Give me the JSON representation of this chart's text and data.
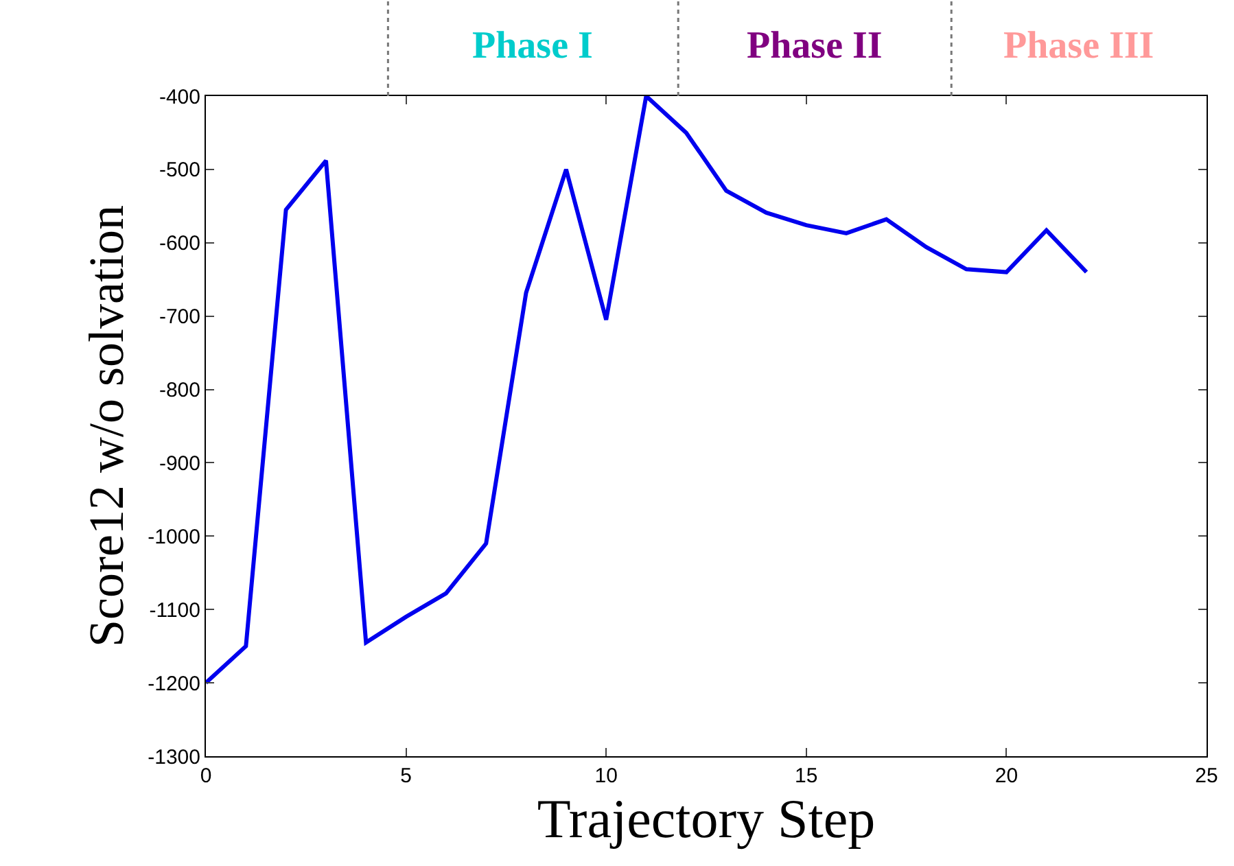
{
  "chart_data": {
    "type": "line",
    "xlabel": "Trajectory Step",
    "ylabel": "Score12 w/o solvation",
    "x": [
      0,
      1,
      2,
      3,
      4,
      5,
      6,
      7,
      8,
      9,
      10,
      11,
      12,
      13,
      14,
      15,
      16,
      17,
      18,
      19,
      20,
      21,
      22
    ],
    "series": [
      {
        "color": "#0000ee",
        "values": [
          -1200,
          -1150,
          -555,
          -488,
          -1145,
          -1110,
          -1078,
          -1010,
          -668,
          -500,
          -705,
          -400,
          -450,
          -529,
          -559,
          -576,
          -587,
          -568,
          -606,
          -636,
          -640,
          -583,
          -640
        ]
      }
    ],
    "xlim": [
      0,
      25
    ],
    "xticks": [
      0,
      5,
      10,
      15,
      20,
      25
    ],
    "ylim": [
      -1300,
      -400
    ],
    "yticks": [
      -1300,
      -1200,
      -1100,
      -1000,
      -900,
      -800,
      -700,
      -600,
      -500,
      -400
    ],
    "annotations": [
      "Phase I",
      "Phase II",
      "Phase III"
    ],
    "marker": "none",
    "line_style": "solid"
  }
}
